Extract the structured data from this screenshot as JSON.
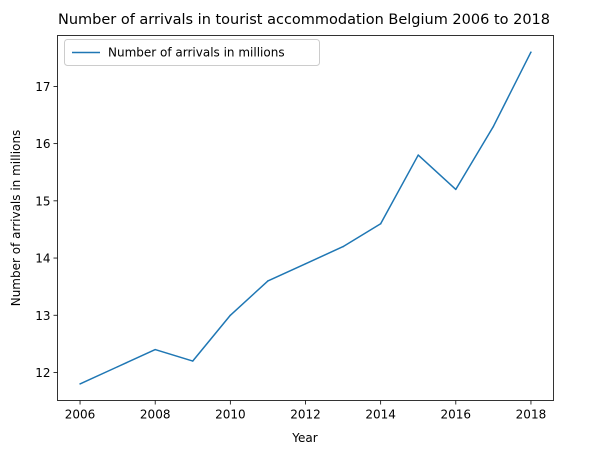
{
  "chart_data": {
    "type": "line",
    "title": "Number of arrivals in tourist accommodation Belgium 2006 to 2018",
    "xlabel": "Year",
    "ylabel": "Number of arrivals in millions",
    "x": [
      2006,
      2007,
      2008,
      2009,
      2010,
      2011,
      2012,
      2013,
      2014,
      2015,
      2016,
      2017,
      2018
    ],
    "series": [
      {
        "name": "Number of arrivals in millions",
        "color": "#1f77b4",
        "values": [
          11.8,
          12.1,
          12.4,
          12.2,
          13.0,
          13.6,
          13.9,
          14.2,
          14.6,
          15.8,
          15.2,
          16.3,
          17.6
        ]
      }
    ],
    "xticks": [
      "2006",
      "2008",
      "2010",
      "2012",
      "2014",
      "2016",
      "2018"
    ],
    "yticks": [
      "12",
      "13",
      "14",
      "15",
      "16",
      "17"
    ],
    "xlim": [
      2005.4,
      2018.6
    ],
    "ylim": [
      11.51,
      17.89
    ],
    "grid": false,
    "legend": "top-left"
  }
}
